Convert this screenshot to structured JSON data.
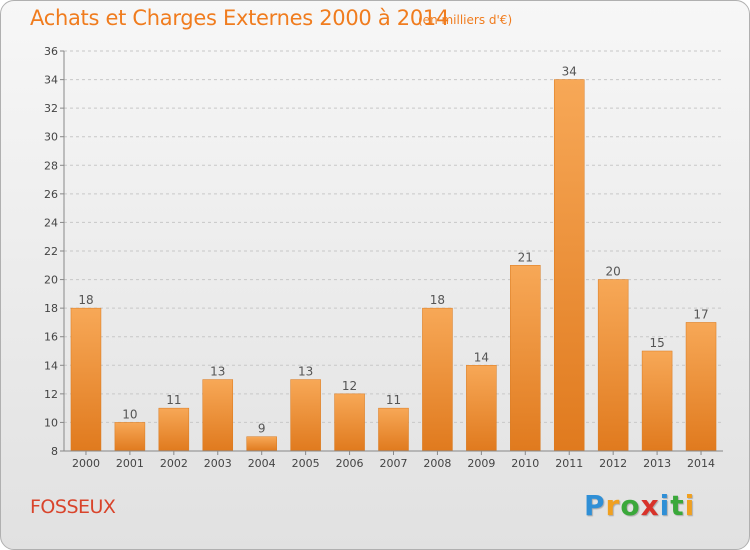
{
  "title": "Achats et Charges Externes 2000 à 2014",
  "subtitle": "(en milliers d'€)",
  "commune": "FOSSEUX",
  "logo": {
    "text": "Proxiti",
    "letters": [
      "P",
      "r",
      "o",
      "x",
      "i",
      "t",
      "i"
    ],
    "colors": [
      "#2f8fd6",
      "#f0a020",
      "#3aa83a",
      "#d8322a",
      "#2f8fd6",
      "#3aa83a",
      "#f0a020"
    ]
  },
  "colors": {
    "title": "#f07c1e",
    "commune": "#d9442b",
    "bar_light": "#f7a857",
    "bar_dark": "#e07a1e",
    "value_label": "#555555"
  },
  "chart_data": {
    "type": "bar",
    "categories": [
      "2000",
      "2001",
      "2002",
      "2003",
      "2004",
      "2005",
      "2006",
      "2007",
      "2008",
      "2009",
      "2010",
      "2011",
      "2012",
      "2013",
      "2014"
    ],
    "values": [
      18,
      10,
      11,
      13,
      9,
      13,
      12,
      11,
      18,
      14,
      21,
      34,
      20,
      15,
      17
    ],
    "ylim": [
      8,
      36
    ],
    "yticks": [
      8,
      10,
      12,
      14,
      16,
      18,
      20,
      22,
      24,
      26,
      28,
      30,
      32,
      34,
      36
    ],
    "grid": true,
    "xlabel": "",
    "ylabel": ""
  }
}
